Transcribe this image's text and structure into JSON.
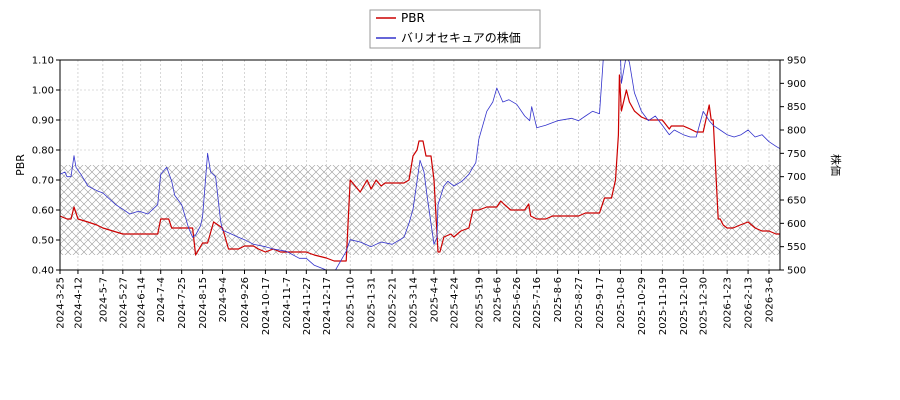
{
  "chart_data": {
    "type": "line",
    "title": "",
    "xlabel": "",
    "ylabel": "PBR",
    "y2label": "株価",
    "ylim": [
      0.4,
      1.1
    ],
    "y2lim": [
      500,
      950
    ],
    "yticks": [
      "0.40",
      "0.50",
      "0.60",
      "0.70",
      "0.80",
      "0.90",
      "1.00",
      "1.10"
    ],
    "y2ticks": [
      "500",
      "550",
      "600",
      "650",
      "700",
      "750",
      "800",
      "850",
      "900",
      "950"
    ],
    "xlim": [
      "2024-03-25",
      "2026-03-17"
    ],
    "xticks": [
      "2024-3-25",
      "2024-4-12",
      "2024-5-7",
      "2024-5-27",
      "2024-6-14",
      "2024-7-4",
      "2024-7-25",
      "2024-8-15",
      "2024-9-4",
      "2024-9-26",
      "2024-10-17",
      "2024-11-7",
      "2024-11-27",
      "2024-12-17",
      "2025-1-10",
      "2025-1-31",
      "2025-2-21",
      "2025-3-14",
      "2025-4-4",
      "2025-4-24",
      "2025-5-19",
      "2025-6-6",
      "2025-6-26",
      "2025-7-16",
      "2025-8-6",
      "2025-8-27",
      "2025-9-17",
      "2025-10-8",
      "2025-10-29",
      "2025-11-19",
      "2025-12-10",
      "2025-12-30",
      "2026-1-23",
      "2026-2-13",
      "2026-3-6"
    ],
    "grid": true,
    "hatched_band": [
      0.45,
      0.75
    ],
    "legend": "top-center",
    "series": [
      {
        "name": "PBR",
        "axis": "left",
        "color": "#cc0000",
        "x": [
          "2024-03-25",
          "2024-04-01",
          "2024-04-05",
          "2024-04-08",
          "2024-04-12",
          "2024-04-22",
          "2024-05-01",
          "2024-05-07",
          "2024-05-27",
          "2024-06-03",
          "2024-06-14",
          "2024-07-01",
          "2024-07-04",
          "2024-07-12",
          "2024-07-15",
          "2024-07-25",
          "2024-08-05",
          "2024-08-08",
          "2024-08-15",
          "2024-08-20",
          "2024-08-26",
          "2024-09-04",
          "2024-09-10",
          "2024-09-20",
          "2024-09-26",
          "2024-10-05",
          "2024-10-10",
          "2024-10-17",
          "2024-10-25",
          "2024-11-01",
          "2024-11-07",
          "2024-11-20",
          "2024-11-27",
          "2024-12-05",
          "2024-12-17",
          "2024-12-25",
          "2025-01-06",
          "2025-01-10",
          "2025-01-15",
          "2025-01-20",
          "2025-01-27",
          "2025-01-31",
          "2025-02-05",
          "2025-02-10",
          "2025-02-14",
          "2025-02-21",
          "2025-03-05",
          "2025-03-10",
          "2025-03-14",
          "2025-03-18",
          "2025-03-20",
          "2025-03-24",
          "2025-03-27",
          "2025-04-01",
          "2025-04-04",
          "2025-04-07",
          "2025-04-08",
          "2025-04-10",
          "2025-04-14",
          "2025-04-21",
          "2025-04-24",
          "2025-05-01",
          "2025-05-09",
          "2025-05-13",
          "2025-05-19",
          "2025-05-27",
          "2025-06-06",
          "2025-06-10",
          "2025-06-13",
          "2025-06-20",
          "2025-06-26",
          "2025-07-04",
          "2025-07-08",
          "2025-07-10",
          "2025-07-16",
          "2025-07-25",
          "2025-08-01",
          "2025-08-06",
          "2025-08-27",
          "2025-09-03",
          "2025-09-10",
          "2025-09-17",
          "2025-09-22",
          "2025-09-29",
          "2025-10-01",
          "2025-10-03",
          "2025-10-06",
          "2025-10-07",
          "2025-10-09",
          "2025-10-14",
          "2025-10-17",
          "2025-10-22",
          "2025-10-29",
          "2025-11-05",
          "2025-11-19",
          "2025-11-26",
          "2025-11-28",
          "2025-12-01",
          "2025-12-10",
          "2025-12-17",
          "2025-12-23",
          "2025-12-30",
          "2026-01-05",
          "2026-01-07",
          "2026-01-09",
          "2026-01-14",
          "2026-01-16",
          "2026-01-19",
          "2026-01-23",
          "2026-01-29",
          "2026-02-05",
          "2026-02-13",
          "2026-02-20",
          "2026-02-27",
          "2026-03-06",
          "2026-03-13",
          "2026-03-17"
        ],
        "values": [
          0.58,
          0.57,
          0.57,
          0.61,
          0.57,
          0.56,
          0.55,
          0.54,
          0.52,
          0.52,
          0.52,
          0.52,
          0.57,
          0.57,
          0.54,
          0.54,
          0.54,
          0.45,
          0.49,
          0.49,
          0.56,
          0.54,
          0.47,
          0.47,
          0.48,
          0.48,
          0.47,
          0.46,
          0.47,
          0.46,
          0.46,
          0.46,
          0.46,
          0.45,
          0.44,
          0.43,
          0.43,
          0.7,
          0.68,
          0.66,
          0.7,
          0.67,
          0.7,
          0.68,
          0.69,
          0.69,
          0.69,
          0.7,
          0.78,
          0.8,
          0.83,
          0.83,
          0.78,
          0.78,
          0.7,
          0.52,
          0.46,
          0.46,
          0.51,
          0.52,
          0.51,
          0.53,
          0.54,
          0.6,
          0.6,
          0.61,
          0.61,
          0.63,
          0.62,
          0.6,
          0.6,
          0.6,
          0.62,
          0.58,
          0.57,
          0.57,
          0.58,
          0.58,
          0.58,
          0.59,
          0.59,
          0.59,
          0.64,
          0.64,
          0.67,
          0.7,
          0.85,
          1.05,
          0.93,
          1.0,
          0.96,
          0.93,
          0.91,
          0.9,
          0.9,
          0.87,
          0.88,
          0.88,
          0.88,
          0.87,
          0.86,
          0.86,
          0.95,
          0.9,
          0.9,
          0.57,
          0.57,
          0.55,
          0.54,
          0.54,
          0.55,
          0.56,
          0.54,
          0.53,
          0.53,
          0.52,
          0.52
        ]
      },
      {
        "name": "バリオセキュアの株価",
        "axis": "right",
        "color": "#3333cc",
        "x": [
          "2024-03-25",
          "2024-03-30",
          "2024-04-01",
          "2024-04-05",
          "2024-04-08",
          "2024-04-10",
          "2024-04-15",
          "2024-04-22",
          "2024-05-01",
          "2024-05-07",
          "2024-05-20",
          "2024-05-27",
          "2024-06-03",
          "2024-06-10",
          "2024-06-14",
          "2024-06-21",
          "2024-07-01",
          "2024-07-04",
          "2024-07-10",
          "2024-07-15",
          "2024-07-18",
          "2024-07-25",
          "2024-08-01",
          "2024-08-05",
          "2024-08-08",
          "2024-08-13",
          "2024-08-15",
          "2024-08-20",
          "2024-08-23",
          "2024-08-28",
          "2024-09-02",
          "2024-09-04",
          "2024-09-10",
          "2024-09-20",
          "2024-09-26",
          "2024-10-05",
          "2024-10-17",
          "2024-10-25",
          "2024-11-07",
          "2024-11-20",
          "2024-11-27",
          "2024-12-05",
          "2024-12-17",
          "2024-12-25",
          "2025-01-06",
          "2025-01-10",
          "2025-01-20",
          "2025-01-31",
          "2025-02-10",
          "2025-02-21",
          "2025-03-05",
          "2025-03-10",
          "2025-03-14",
          "2025-03-18",
          "2025-03-21",
          "2025-03-25",
          "2025-03-28",
          "2025-04-01",
          "2025-04-04",
          "2025-04-07",
          "2025-04-08",
          "2025-04-14",
          "2025-04-18",
          "2025-04-24",
          "2025-05-02",
          "2025-05-09",
          "2025-05-13",
          "2025-05-16",
          "2025-05-19",
          "2025-05-27",
          "2025-06-02",
          "2025-06-06",
          "2025-06-12",
          "2025-06-18",
          "2025-06-26",
          "2025-07-04",
          "2025-07-09",
          "2025-07-11",
          "2025-07-16",
          "2025-07-25",
          "2025-08-06",
          "2025-08-20",
          "2025-08-27",
          "2025-09-03",
          "2025-09-10",
          "2025-09-17",
          "2025-09-22",
          "2025-09-26",
          "2025-09-29",
          "2025-10-01",
          "2025-10-03",
          "2025-10-07",
          "2025-10-09",
          "2025-10-14",
          "2025-10-17",
          "2025-10-22",
          "2025-10-29",
          "2025-11-05",
          "2025-11-12",
          "2025-11-19",
          "2025-11-26",
          "2025-12-01",
          "2025-12-10",
          "2025-12-17",
          "2025-12-23",
          "2025-12-30",
          "2026-01-05",
          "2026-01-09",
          "2026-01-16",
          "2026-01-23",
          "2026-01-30",
          "2026-02-06",
          "2026-02-13",
          "2026-02-20",
          "2026-02-27",
          "2026-03-06",
          "2026-03-13",
          "2026-03-17"
        ],
        "values": [
          705,
          710,
          700,
          700,
          745,
          720,
          705,
          680,
          670,
          665,
          640,
          630,
          620,
          625,
          625,
          620,
          640,
          705,
          720,
          690,
          660,
          640,
          590,
          570,
          575,
          595,
          615,
          750,
          710,
          700,
          605,
          585,
          580,
          570,
          565,
          555,
          550,
          545,
          540,
          525,
          525,
          510,
          500,
          495,
          540,
          565,
          560,
          550,
          560,
          555,
          570,
          600,
          630,
          690,
          735,
          710,
          660,
          600,
          555,
          570,
          640,
          680,
          690,
          680,
          690,
          705,
          720,
          730,
          780,
          840,
          860,
          890,
          860,
          865,
          855,
          830,
          820,
          850,
          805,
          810,
          820,
          825,
          820,
          830,
          840,
          835,
          990,
          950,
          1010,
          955,
          1030,
          1030,
          900,
          960,
          945,
          880,
          840,
          820,
          830,
          810,
          790,
          800,
          790,
          785,
          785,
          840,
          820,
          810,
          800,
          790,
          785,
          790,
          800,
          785,
          790,
          775,
          765,
          760
        ]
      }
    ]
  },
  "legend": {
    "items": [
      {
        "label": "PBR",
        "color": "#cc0000"
      },
      {
        "label": "バリオセキュアの株価",
        "color": "#3333cc"
      }
    ]
  }
}
